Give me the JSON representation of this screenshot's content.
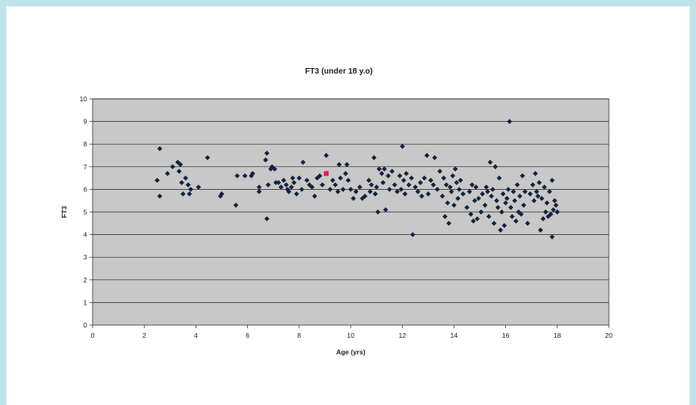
{
  "chart_data": {
    "type": "scatter",
    "title": "FT3 (under 18 y.o)",
    "xlabel": "Age (yrs)",
    "ylabel": "FT3",
    "xlim": [
      0,
      20
    ],
    "ylim": [
      0,
      10
    ],
    "x_ticks": [
      0,
      2,
      4,
      6,
      8,
      10,
      12,
      14,
      16,
      18,
      20
    ],
    "y_ticks": [
      0,
      1,
      2,
      3,
      4,
      5,
      6,
      7,
      8,
      9,
      10
    ],
    "grid": "horizontal",
    "legend": "none",
    "colors": {
      "plot_bg": "#c8c8c8",
      "marker": "#13233d",
      "highlight": "#e0185a"
    },
    "series": [
      {
        "points": [
          [
            2.5,
            6.4
          ],
          [
            2.6,
            7.8
          ],
          [
            2.6,
            5.7
          ],
          [
            2.9,
            6.7
          ],
          [
            3.1,
            7.0
          ],
          [
            3.3,
            7.2
          ],
          [
            3.35,
            6.8
          ],
          [
            3.4,
            7.1
          ],
          [
            3.45,
            6.3
          ],
          [
            3.5,
            5.8
          ],
          [
            3.6,
            6.5
          ],
          [
            3.7,
            6.2
          ],
          [
            3.75,
            5.8
          ],
          [
            3.8,
            6.0
          ],
          [
            4.1,
            6.1
          ],
          [
            4.45,
            7.4
          ],
          [
            4.95,
            5.7
          ],
          [
            5.0,
            5.8
          ],
          [
            5.55,
            5.3
          ],
          [
            5.6,
            6.6
          ],
          [
            5.9,
            6.6
          ],
          [
            6.15,
            6.6
          ],
          [
            6.2,
            6.7
          ],
          [
            6.45,
            6.1
          ],
          [
            6.45,
            5.9
          ],
          [
            6.7,
            7.3
          ],
          [
            6.75,
            7.6
          ],
          [
            6.75,
            4.7
          ],
          [
            6.8,
            6.2
          ],
          [
            6.9,
            6.9
          ],
          [
            6.95,
            7.0
          ],
          [
            7.05,
            6.9
          ],
          [
            7.1,
            6.3
          ],
          [
            7.2,
            6.3
          ],
          [
            7.3,
            6.1
          ],
          [
            7.4,
            6.4
          ],
          [
            7.5,
            6.2
          ],
          [
            7.55,
            6.0
          ],
          [
            7.6,
            5.9
          ],
          [
            7.7,
            6.1
          ],
          [
            7.75,
            6.5
          ],
          [
            7.8,
            6.3
          ],
          [
            7.9,
            5.8
          ],
          [
            8.0,
            6.5
          ],
          [
            8.1,
            6.0
          ],
          [
            8.15,
            7.2
          ],
          [
            8.3,
            6.4
          ],
          [
            8.4,
            6.2
          ],
          [
            8.5,
            6.1
          ],
          [
            8.6,
            5.7
          ],
          [
            8.7,
            6.5
          ],
          [
            8.8,
            6.6
          ],
          [
            8.9,
            6.2
          ],
          [
            9.05,
            7.5
          ],
          [
            9.2,
            6.0
          ],
          [
            9.3,
            6.4
          ],
          [
            9.4,
            6.2
          ],
          [
            9.5,
            5.9
          ],
          [
            9.55,
            7.1
          ],
          [
            9.6,
            6.5
          ],
          [
            9.7,
            6.0
          ],
          [
            9.8,
            6.7
          ],
          [
            9.85,
            7.1
          ],
          [
            9.9,
            6.4
          ],
          [
            10.0,
            6.0
          ],
          [
            10.1,
            5.6
          ],
          [
            10.2,
            5.9
          ],
          [
            10.35,
            6.1
          ],
          [
            10.45,
            5.6
          ],
          [
            10.55,
            5.7
          ],
          [
            10.7,
            6.4
          ],
          [
            10.75,
            5.9
          ],
          [
            10.8,
            6.2
          ],
          [
            10.9,
            7.4
          ],
          [
            10.95,
            5.8
          ],
          [
            11.0,
            6.1
          ],
          [
            11.05,
            5.0
          ],
          [
            11.1,
            6.9
          ],
          [
            11.2,
            6.7
          ],
          [
            11.25,
            6.3
          ],
          [
            11.3,
            6.9
          ],
          [
            11.35,
            5.1
          ],
          [
            11.45,
            6.6
          ],
          [
            11.5,
            6.0
          ],
          [
            11.6,
            6.8
          ],
          [
            11.7,
            6.2
          ],
          [
            11.8,
            5.9
          ],
          [
            11.9,
            6.6
          ],
          [
            11.95,
            6.0
          ],
          [
            12.0,
            7.9
          ],
          [
            12.05,
            6.4
          ],
          [
            12.1,
            5.8
          ],
          [
            12.15,
            6.7
          ],
          [
            12.25,
            6.2
          ],
          [
            12.35,
            6.5
          ],
          [
            12.4,
            4.0
          ],
          [
            12.5,
            6.1
          ],
          [
            12.6,
            5.9
          ],
          [
            12.7,
            6.3
          ],
          [
            12.75,
            5.7
          ],
          [
            12.85,
            6.5
          ],
          [
            12.95,
            7.5
          ],
          [
            13.0,
            5.8
          ],
          [
            13.1,
            6.4
          ],
          [
            13.2,
            6.2
          ],
          [
            13.25,
            7.4
          ],
          [
            13.35,
            6.0
          ],
          [
            13.45,
            6.8
          ],
          [
            13.55,
            5.7
          ],
          [
            13.6,
            6.5
          ],
          [
            13.65,
            4.8
          ],
          [
            13.7,
            6.2
          ],
          [
            13.75,
            5.4
          ],
          [
            13.8,
            4.5
          ],
          [
            13.85,
            6.1
          ],
          [
            13.9,
            5.9
          ],
          [
            13.95,
            6.6
          ],
          [
            14.0,
            5.3
          ],
          [
            14.05,
            6.9
          ],
          [
            14.1,
            6.3
          ],
          [
            14.15,
            5.6
          ],
          [
            14.2,
            6.0
          ],
          [
            14.25,
            6.4
          ],
          [
            14.35,
            5.8
          ],
          [
            14.5,
            5.2
          ],
          [
            14.6,
            5.9
          ],
          [
            14.65,
            4.9
          ],
          [
            14.7,
            6.2
          ],
          [
            14.75,
            4.6
          ],
          [
            14.8,
            5.5
          ],
          [
            14.85,
            6.1
          ],
          [
            14.9,
            4.7
          ],
          [
            14.95,
            5.6
          ],
          [
            15.05,
            5.0
          ],
          [
            15.1,
            5.8
          ],
          [
            15.2,
            5.3
          ],
          [
            15.25,
            6.1
          ],
          [
            15.3,
            5.9
          ],
          [
            15.35,
            4.8
          ],
          [
            15.4,
            7.2
          ],
          [
            15.45,
            5.7
          ],
          [
            15.5,
            6.0
          ],
          [
            15.55,
            4.5
          ],
          [
            15.6,
            7.0
          ],
          [
            15.65,
            5.5
          ],
          [
            15.7,
            5.2
          ],
          [
            15.75,
            6.5
          ],
          [
            15.8,
            4.2
          ],
          [
            15.85,
            5.0
          ],
          [
            15.9,
            5.8
          ],
          [
            15.95,
            4.4
          ],
          [
            16.0,
            5.4
          ],
          [
            16.05,
            5.6
          ],
          [
            16.1,
            6.0
          ],
          [
            16.15,
            9.0
          ],
          [
            16.2,
            5.2
          ],
          [
            16.25,
            4.8
          ],
          [
            16.3,
            5.9
          ],
          [
            16.35,
            5.5
          ],
          [
            16.4,
            4.6
          ],
          [
            16.45,
            6.2
          ],
          [
            16.5,
            5.0
          ],
          [
            16.55,
            5.7
          ],
          [
            16.6,
            4.9
          ],
          [
            16.65,
            6.6
          ],
          [
            16.7,
            5.3
          ],
          [
            16.75,
            5.9
          ],
          [
            16.85,
            4.5
          ],
          [
            16.95,
            5.8
          ],
          [
            17.05,
            6.2
          ],
          [
            17.1,
            5.5
          ],
          [
            17.15,
            6.7
          ],
          [
            17.2,
            5.9
          ],
          [
            17.25,
            5.7
          ],
          [
            17.3,
            6.3
          ],
          [
            17.35,
            4.2
          ],
          [
            17.4,
            5.6
          ],
          [
            17.45,
            4.7
          ],
          [
            17.5,
            6.1
          ],
          [
            17.55,
            5.0
          ],
          [
            17.6,
            5.4
          ],
          [
            17.65,
            4.8
          ],
          [
            17.7,
            5.9
          ],
          [
            17.75,
            4.9
          ],
          [
            17.8,
            6.4
          ],
          [
            17.8,
            3.9
          ],
          [
            17.85,
            5.1
          ],
          [
            17.9,
            5.5
          ],
          [
            17.95,
            5.3
          ],
          [
            18.0,
            5.0
          ]
        ],
        "highlight": [
          [
            9.05,
            6.7
          ]
        ]
      }
    ]
  }
}
